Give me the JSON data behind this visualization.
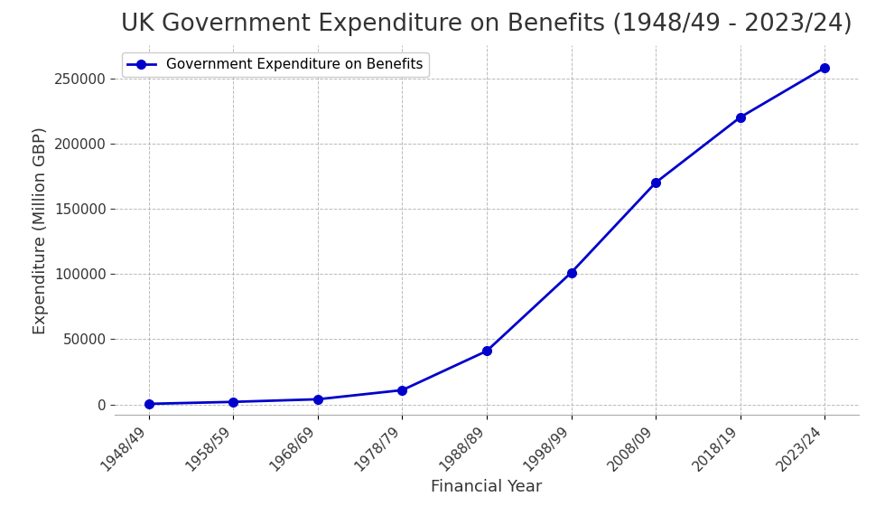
{
  "title": "UK Government Expenditure on Benefits (1948/49 - 2023/24)",
  "xlabel": "Financial Year",
  "ylabel": "Expenditure (Million GBP)",
  "legend_label": "Government Expenditure on Benefits",
  "x_labels": [
    "1948/49",
    "1958/59",
    "1968/69",
    "1978/79",
    "1988/89",
    "1998/99",
    "2008/09",
    "2018/19",
    "2023/24"
  ],
  "x_values": [
    0,
    1,
    2,
    3,
    4,
    5,
    6,
    7,
    8
  ],
  "y_values": [
    500,
    2000,
    4000,
    11000,
    41000,
    101000,
    170000,
    220000,
    258000
  ],
  "line_color": "#0000cc",
  "marker_style": "o",
  "marker_size": 7,
  "line_width": 2,
  "background_color": "#ffffff",
  "grid_color": "#aaaaaa",
  "title_fontsize": 19,
  "label_fontsize": 13,
  "tick_fontsize": 11,
  "legend_fontsize": 11,
  "ylim": [
    -8000,
    275000
  ],
  "yticks": [
    0,
    50000,
    100000,
    150000,
    200000,
    250000
  ]
}
